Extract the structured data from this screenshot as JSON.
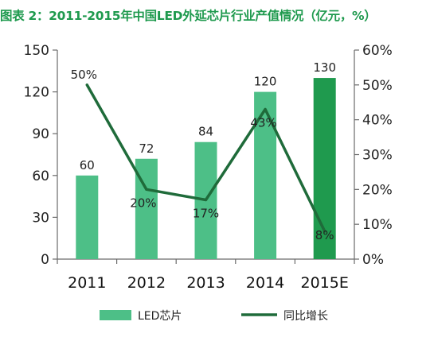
{
  "title": "图表 2：2011-2015年中国LED外延芯片行业产值情况（亿元，%）",
  "chart_data": {
    "type": "bar",
    "categories": [
      "2011",
      "2012",
      "2013",
      "2014",
      "2015E"
    ],
    "series": [
      {
        "name": "LED芯片",
        "type": "bar",
        "axis": "left",
        "values": [
          60,
          72,
          84,
          120,
          130
        ],
        "colors": [
          "#4dbf87",
          "#4dbf87",
          "#4dbf87",
          "#4dbf87",
          "#1f9a4e"
        ]
      },
      {
        "name": "同比增长",
        "type": "line",
        "axis": "right",
        "values": [
          50,
          20,
          17,
          43,
          8
        ],
        "labels": [
          "50%",
          "20%",
          "17%",
          "43%",
          "8%"
        ],
        "color": "#1f6b3a"
      }
    ],
    "y_left": {
      "min": 0,
      "max": 150,
      "ticks": [
        0,
        30,
        60,
        90,
        120,
        150
      ]
    },
    "y_right": {
      "min": 0,
      "max": 60,
      "ticks": [
        "0%",
        "10%",
        "20%",
        "30%",
        "40%",
        "50%",
        "60%"
      ]
    },
    "legend_position": "bottom",
    "grid": false
  }
}
